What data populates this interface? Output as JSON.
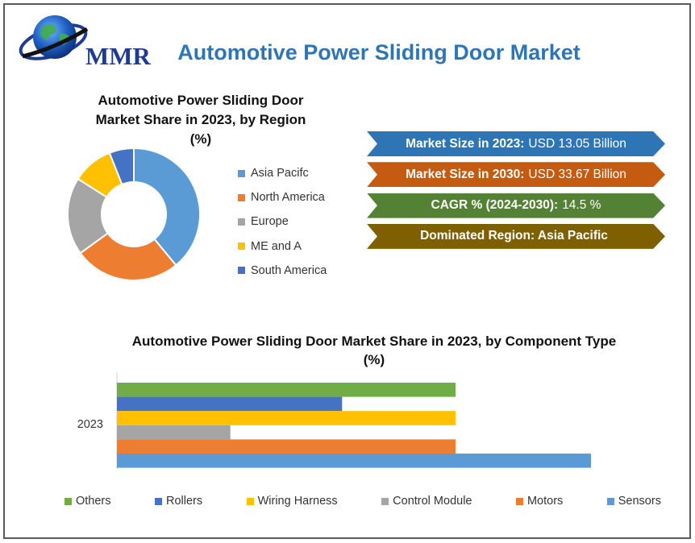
{
  "header": {
    "logo_text": "MMR",
    "title": "Automotive Power Sliding Door Market"
  },
  "banners": [
    {
      "label": "Market Size in 2023:",
      "value": "USD 13.05 Billion",
      "color": "#2e75b6"
    },
    {
      "label": "Market Size in 2030:",
      "value": "USD 33.67 Billion",
      "color": "#c55a11"
    },
    {
      "label": "CAGR % (2024-2030):",
      "value": "14.5 %",
      "color": "#548235"
    },
    {
      "label": "Dominated Region: Asia Pacific",
      "value": "",
      "color": "#7f6000"
    }
  ],
  "chart_data": [
    {
      "type": "pie",
      "donut": true,
      "title_line1": "Automotive Power  Sliding Door",
      "title_line2": "Market Share in 2023, by Region",
      "title_line3": "(%)",
      "legend_position": "right",
      "categories": [
        "Asia Pacifc",
        "North America",
        "Europe",
        "ME and A",
        "South America"
      ],
      "values": [
        39,
        26,
        19,
        10,
        6
      ],
      "colors": [
        "#5b9bd5",
        "#ed7d31",
        "#a5a5a5",
        "#ffc000",
        "#4472c4"
      ]
    },
    {
      "type": "bar",
      "orientation": "horizontal",
      "title_line1": "Automotive Power Sliding Door Market Share in 2023, by Component Type",
      "title_line2": "(%)",
      "category": "2023",
      "legend_position": "bottom",
      "series": [
        {
          "name": "Others",
          "value": 20,
          "color": "#70ad47"
        },
        {
          "name": "Rollers",
          "value": 13.3,
          "color": "#4472c4"
        },
        {
          "name": "Wiring Harness",
          "value": 20,
          "color": "#ffc000"
        },
        {
          "name": "Control Module",
          "value": 6.7,
          "color": "#a5a5a5"
        },
        {
          "name": "Motors",
          "value": 20,
          "color": "#ed7d31"
        },
        {
          "name": "Sensors",
          "value": 28,
          "color": "#5b9bd5"
        }
      ],
      "xlim": [
        0,
        30
      ]
    }
  ]
}
